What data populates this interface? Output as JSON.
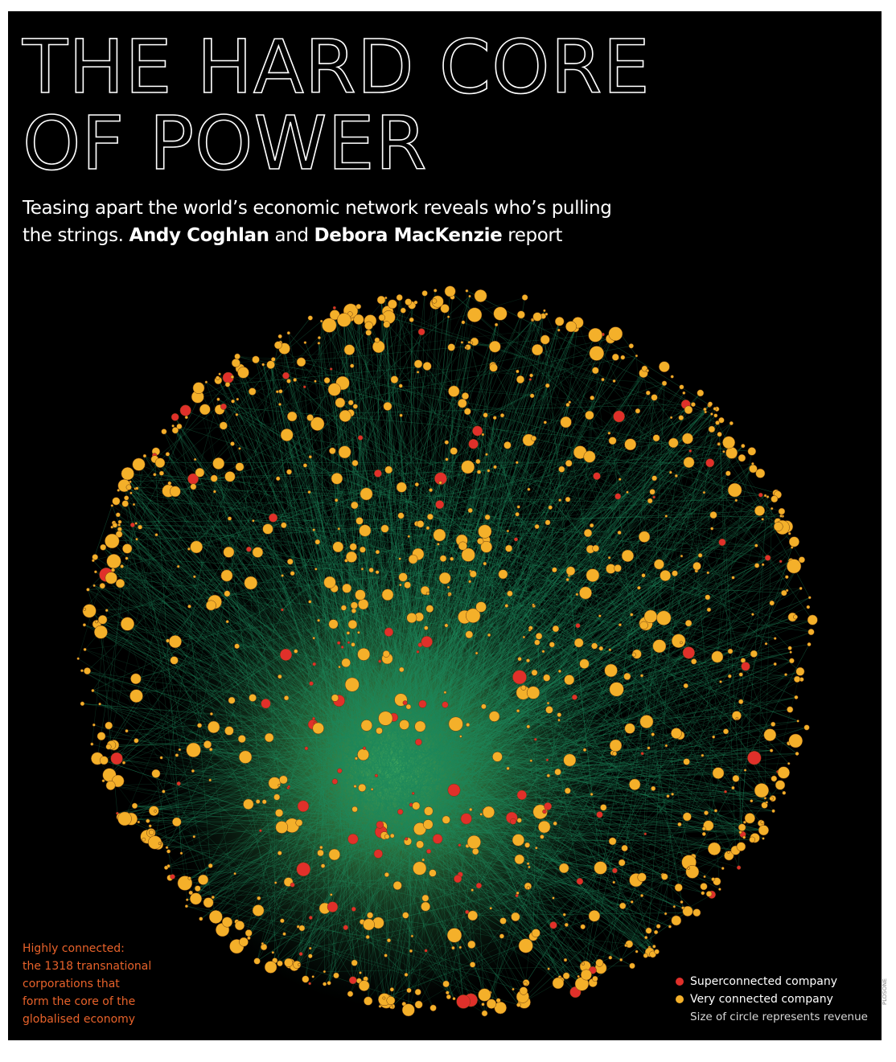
{
  "title": {
    "line1": "THE HARD CORE",
    "line2": "OF POWER"
  },
  "subtitle": {
    "part1": "Teasing apart the world’s economic network reveals who’s pulling the strings. ",
    "author1": "Andy Coghlan",
    "and": " and ",
    "author2": "Debora MacKenzie",
    "part2": " report"
  },
  "caption": {
    "lines": [
      "Highly connected:",
      "the 1318 transnational",
      "corporations that",
      "form the core of the",
      "globalised economy"
    ]
  },
  "legend": {
    "super": "Superconnected company",
    "very": "Very connected company",
    "note": "Size of circle represents revenue"
  },
  "credit": "PLOSONE",
  "colors": {
    "background": "#000000",
    "super": "#e0302a",
    "very": "#f4b02a",
    "link": "#1f8a5e",
    "core_glow": "#4fb05a",
    "caption": "#e8622a"
  }
}
